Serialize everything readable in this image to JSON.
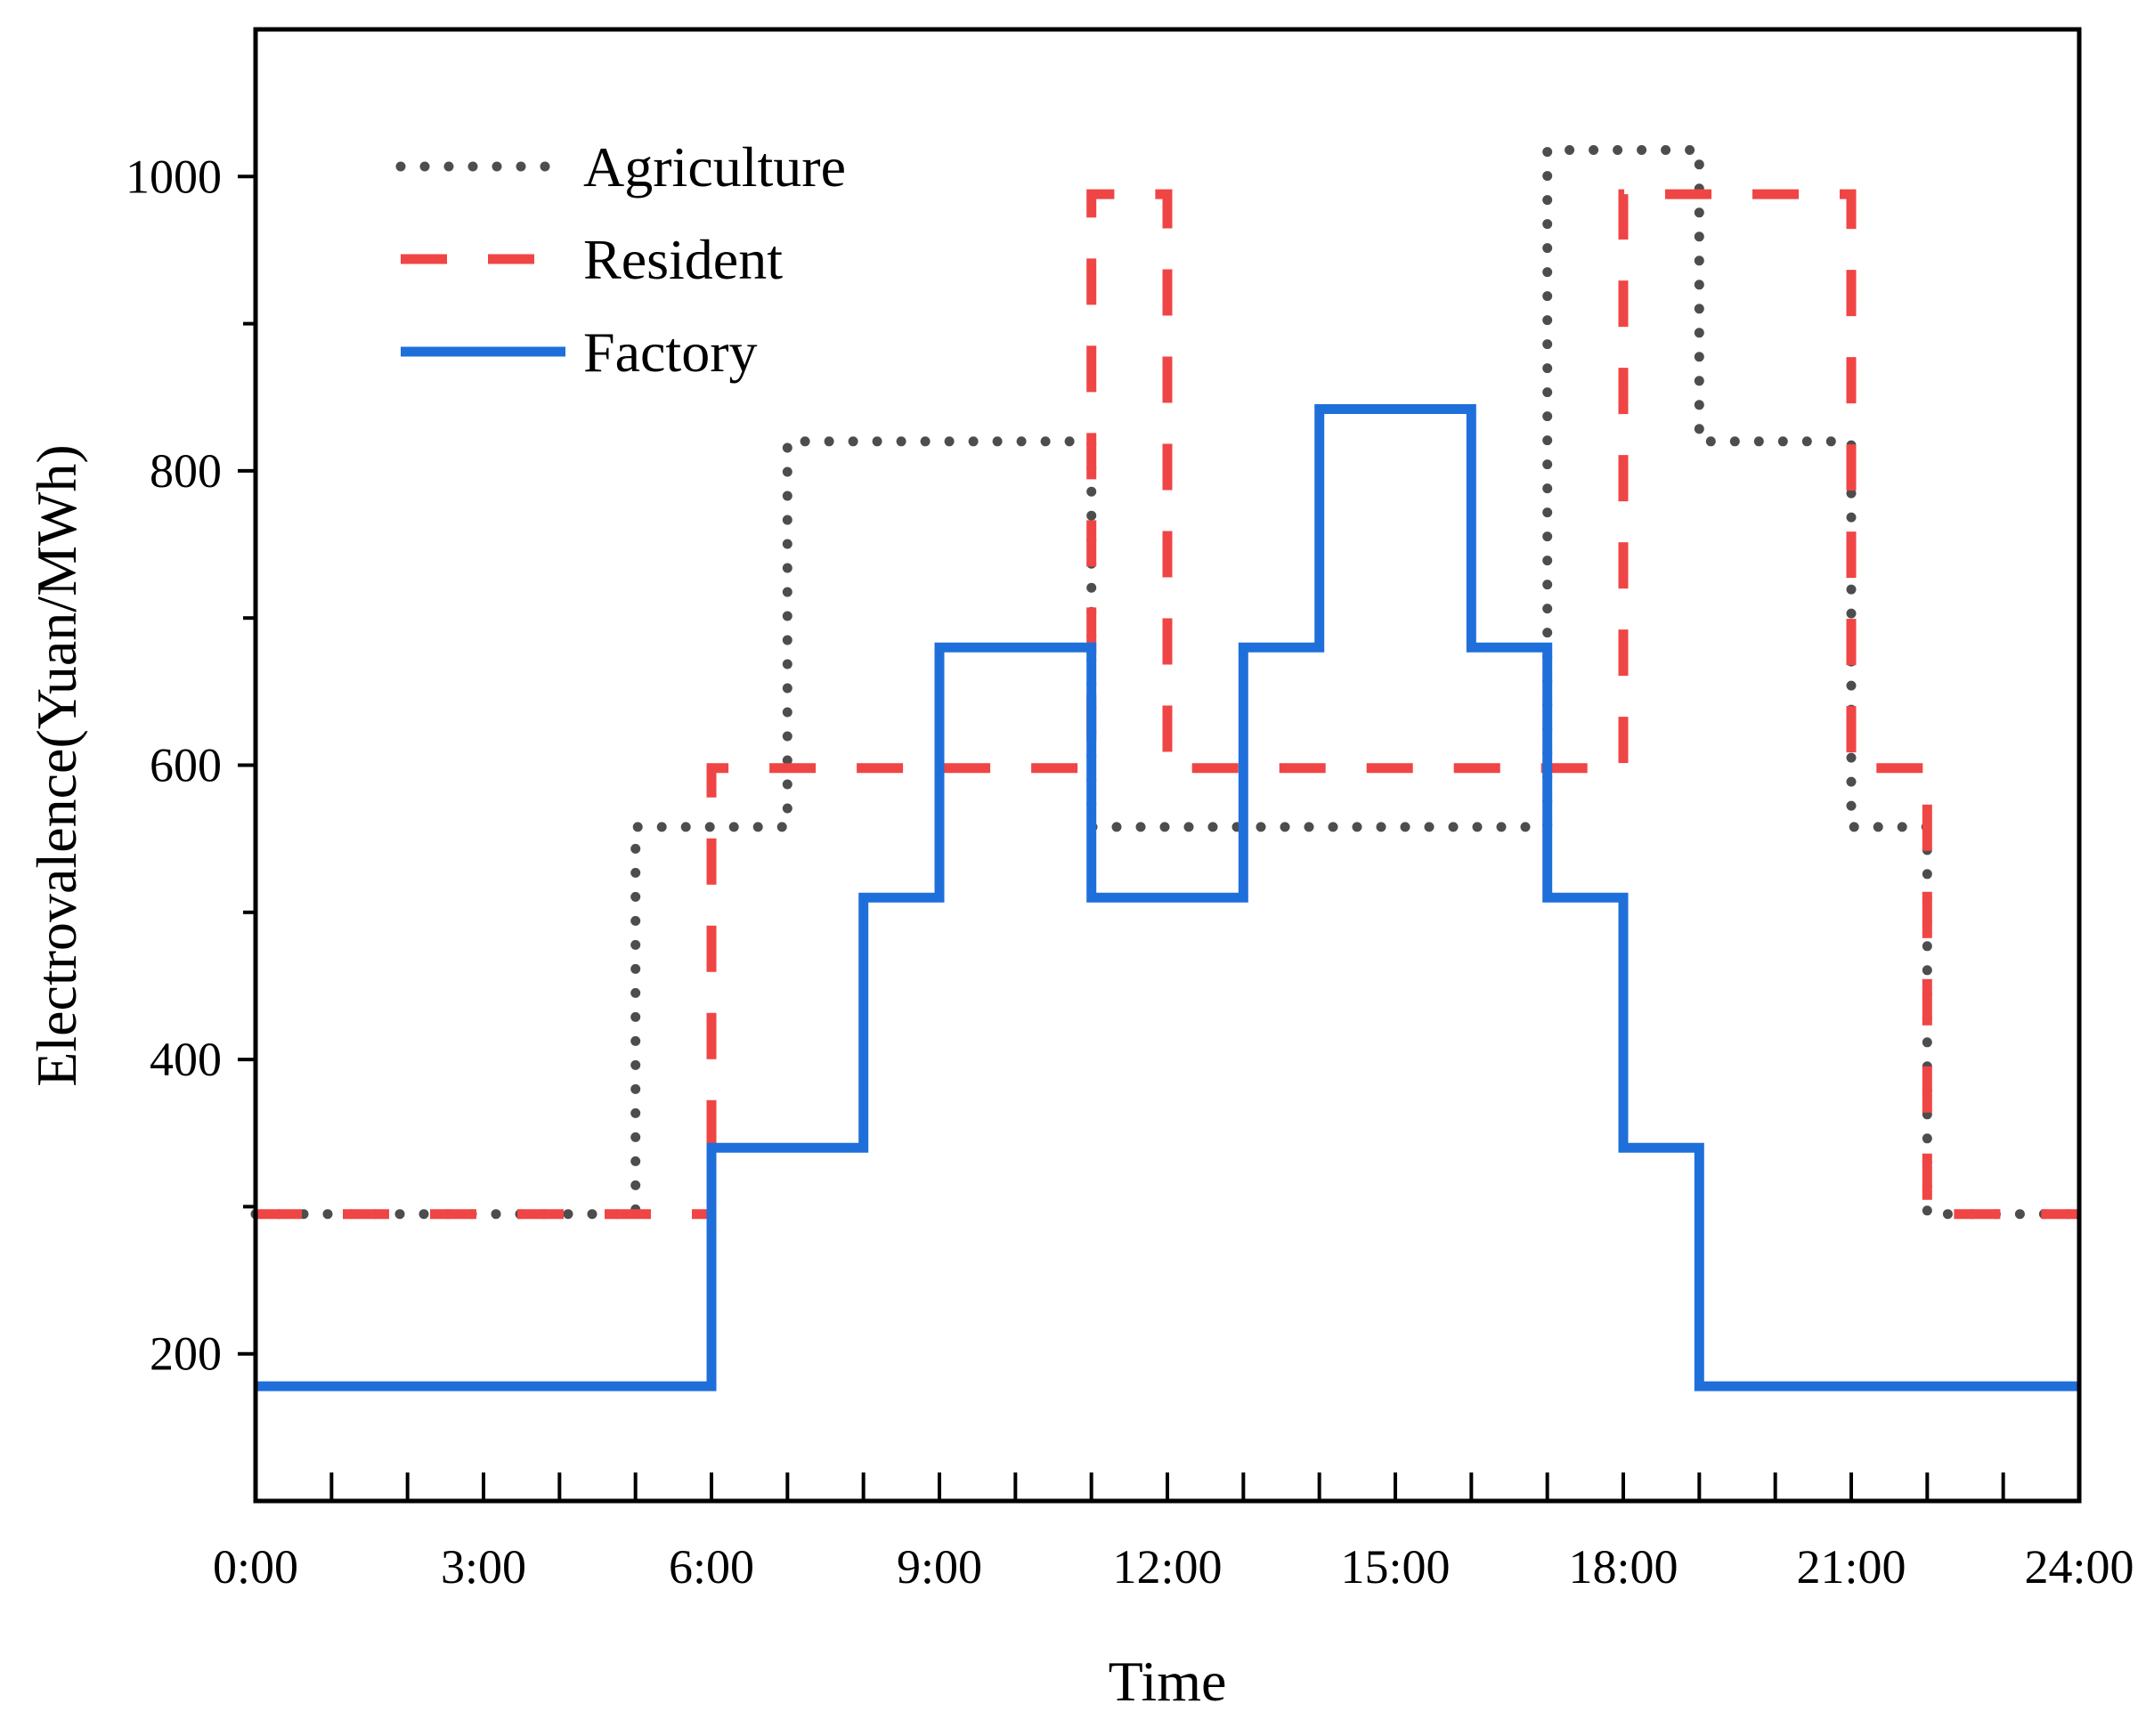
{
  "chart_data": {
    "type": "line",
    "step": "post",
    "xlabel": "Time",
    "ylabel": "Electrovalence(Yuan/MWh)",
    "xlim": [
      0,
      24
    ],
    "ylim": [
      100,
      1100
    ],
    "x_ticks": [
      0,
      3,
      6,
      9,
      12,
      15,
      18,
      21,
      24
    ],
    "x_tick_labels": [
      "0:00",
      "3:00",
      "6:00",
      "9:00",
      "12:00",
      "15:00",
      "18:00",
      "21:00",
      "24:00"
    ],
    "x_minor_ticks": [
      1,
      2,
      4,
      5,
      7,
      8,
      10,
      11,
      13,
      14,
      16,
      17,
      19,
      20,
      22,
      23
    ],
    "y_ticks": [
      200,
      400,
      600,
      800,
      1000
    ],
    "y_tick_labels": [
      "200",
      "400",
      "600",
      "800",
      "1000"
    ],
    "y_minor_ticks": [
      300,
      500,
      700,
      900
    ],
    "grid": false,
    "legend_position": "top-left",
    "hours": [
      0,
      1,
      2,
      3,
      4,
      5,
      6,
      7,
      8,
      9,
      10,
      11,
      12,
      13,
      14,
      15,
      16,
      17,
      18,
      19,
      20,
      21,
      22,
      23
    ],
    "series": [
      {
        "name": "Agriculture",
        "style": "dotted",
        "color": "#4d4d4d",
        "values": [
          295,
          295,
          295,
          295,
          295,
          558,
          558,
          820,
          820,
          820,
          820,
          558,
          558,
          558,
          558,
          558,
          558,
          1018,
          1018,
          820,
          820,
          558,
          295,
          295
        ]
      },
      {
        "name": "Resident",
        "style": "dashed",
        "color": "#f04545",
        "values": [
          295,
          295,
          295,
          295,
          295,
          295,
          598,
          598,
          598,
          598,
          598,
          988,
          598,
          598,
          598,
          598,
          598,
          598,
          988,
          988,
          988,
          598,
          295,
          295
        ]
      },
      {
        "name": "Factory",
        "style": "solid",
        "color": "#1f6fdb",
        "values": [
          178,
          178,
          178,
          178,
          178,
          178,
          340,
          340,
          510,
          680,
          680,
          510,
          510,
          680,
          842,
          842,
          680,
          510,
          340,
          178,
          178,
          178,
          178,
          178
        ]
      }
    ]
  }
}
